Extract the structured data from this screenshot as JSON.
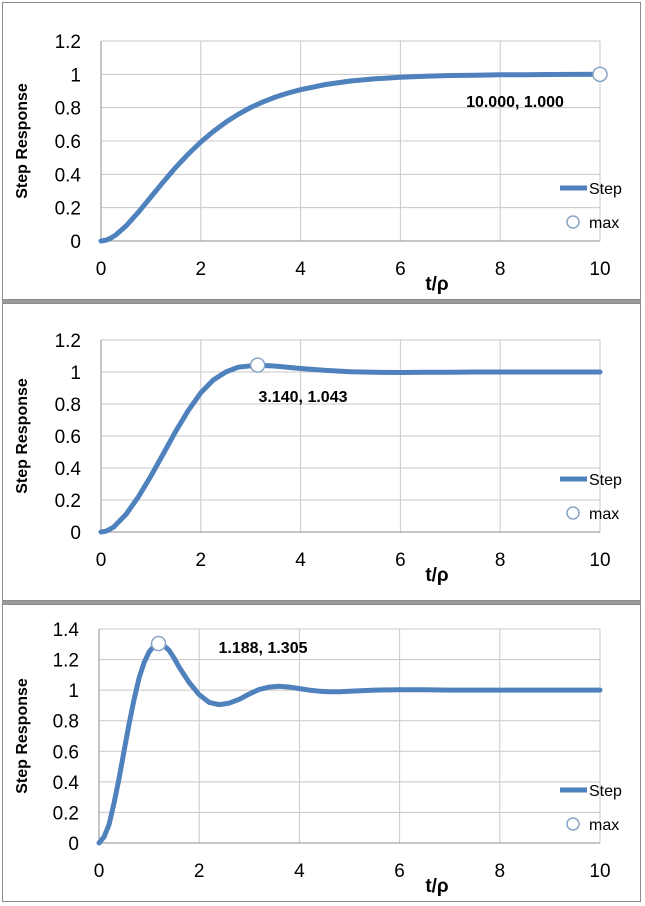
{
  "chart_data": [
    {
      "type": "line",
      "ylabel": "Step Response",
      "xlabel": "t/ρ",
      "xlim": [
        0,
        10
      ],
      "ylim": [
        0,
        1.2
      ],
      "xticks": [
        "0",
        "2",
        "4",
        "6",
        "8",
        "10"
      ],
      "yticks": [
        "0",
        "0.2",
        "0.4",
        "0.6",
        "0.8",
        "1",
        "1.2"
      ],
      "grid": true,
      "legend_position": "right",
      "legend": [
        "Step",
        "max"
      ],
      "series": [
        {
          "name": "Step",
          "color": "#4f81bd",
          "x": [
            0,
            0.1,
            0.2,
            0.3,
            0.5,
            0.75,
            1,
            1.25,
            1.5,
            1.75,
            2,
            2.25,
            2.5,
            2.75,
            3,
            3.25,
            3.5,
            3.75,
            4,
            4.5,
            5,
            5.5,
            6,
            6.5,
            7,
            7.5,
            8,
            8.5,
            9,
            9.5,
            10
          ],
          "y": [
            0,
            0.005,
            0.018,
            0.037,
            0.09,
            0.173,
            0.264,
            0.355,
            0.442,
            0.522,
            0.594,
            0.657,
            0.713,
            0.76,
            0.801,
            0.835,
            0.864,
            0.888,
            0.908,
            0.939,
            0.96,
            0.973,
            0.983,
            0.989,
            0.993,
            0.995,
            0.997,
            0.998,
            0.999,
            0.9995,
            1.0
          ]
        },
        {
          "name": "max",
          "x": [
            10
          ],
          "y": [
            1.0
          ]
        }
      ],
      "annotation": "10.000, 1.000"
    },
    {
      "type": "line",
      "ylabel": "Step Response",
      "xlabel": "t/ρ",
      "xlim": [
        0,
        10
      ],
      "ylim": [
        0,
        1.2
      ],
      "xticks": [
        "0",
        "2",
        "4",
        "6",
        "8",
        "10"
      ],
      "yticks": [
        "0",
        "0.2",
        "0.4",
        "0.6",
        "0.8",
        "1",
        "1.2"
      ],
      "grid": true,
      "legend_position": "right",
      "legend": [
        "Step",
        "max"
      ],
      "series": [
        {
          "name": "Step",
          "color": "#4f81bd",
          "x": [
            0,
            0.1,
            0.25,
            0.5,
            0.75,
            1,
            1.25,
            1.5,
            1.75,
            2,
            2.25,
            2.5,
            2.75,
            3.14,
            3.5,
            4,
            4.5,
            5,
            5.5,
            6,
            6.5,
            7,
            7.5,
            8,
            9,
            10
          ],
          "y": [
            0,
            0.005,
            0.03,
            0.11,
            0.22,
            0.35,
            0.49,
            0.63,
            0.76,
            0.87,
            0.95,
            1.0,
            1.03,
            1.043,
            1.037,
            1.022,
            1.01,
            1.002,
            0.998,
            0.997,
            0.998,
            0.999,
            1.0,
            1.0,
            1.0,
            1.0
          ]
        },
        {
          "name": "max",
          "x": [
            3.14
          ],
          "y": [
            1.043
          ]
        }
      ],
      "annotation": "3.140, 1.043"
    },
    {
      "type": "line",
      "ylabel": "Step Response",
      "xlabel": "t/ρ",
      "xlim": [
        0,
        10
      ],
      "ylim": [
        0,
        1.4
      ],
      "xticks": [
        "0",
        "2",
        "4",
        "6",
        "8",
        "10"
      ],
      "yticks": [
        "0",
        "0.2",
        "0.4",
        "0.6",
        "0.8",
        "1",
        "1.2",
        "1.4"
      ],
      "grid": true,
      "legend_position": "right",
      "legend": [
        "Step",
        "max"
      ],
      "series": [
        {
          "name": "Step",
          "color": "#4f81bd",
          "x": [
            0,
            0.1,
            0.2,
            0.3,
            0.4,
            0.5,
            0.6,
            0.7,
            0.8,
            0.9,
            1.0,
            1.1,
            1.188,
            1.3,
            1.4,
            1.5,
            1.6,
            1.8,
            2.0,
            2.2,
            2.4,
            2.6,
            2.8,
            3.0,
            3.2,
            3.4,
            3.6,
            3.8,
            4.0,
            4.2,
            4.4,
            4.6,
            4.8,
            5.0,
            5.5,
            6.0,
            6.5,
            7.0,
            8.0,
            9.0,
            10.0
          ],
          "y": [
            0,
            0.04,
            0.12,
            0.26,
            0.42,
            0.6,
            0.78,
            0.94,
            1.08,
            1.18,
            1.25,
            1.29,
            1.305,
            1.29,
            1.26,
            1.21,
            1.15,
            1.05,
            0.97,
            0.92,
            0.905,
            0.915,
            0.94,
            0.975,
            1.005,
            1.02,
            1.025,
            1.02,
            1.01,
            1.0,
            0.993,
            0.99,
            0.99,
            0.993,
            1.0,
            1.003,
            1.002,
            1.0,
            1.0,
            1.0,
            1.0
          ]
        },
        {
          "name": "max",
          "x": [
            1.188
          ],
          "y": [
            1.305
          ]
        }
      ],
      "annotation": "1.188, 1.305"
    }
  ]
}
